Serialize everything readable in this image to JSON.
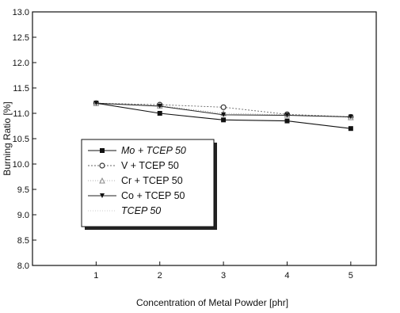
{
  "chart_data": {
    "type": "line",
    "title": "",
    "xlabel": "Concentration of Metal Powder [phr]",
    "ylabel": "Burning Ratio [%]",
    "xlim": [
      0,
      5.4
    ],
    "ylim": [
      8.0,
      13.0
    ],
    "xticks": [
      1,
      2,
      3,
      4,
      5
    ],
    "xtick_labels": [
      "1",
      "2",
      "3",
      "4",
      "5"
    ],
    "yticks": [
      8.0,
      8.5,
      9.0,
      9.5,
      10.0,
      10.5,
      11.0,
      11.5,
      12.0,
      12.5,
      13.0
    ],
    "ytick_labels": [
      "8.0",
      "8.5",
      "9.0",
      "9.5",
      "10.0",
      "10.5",
      "11.0",
      "11.5",
      "12.0",
      "12.5",
      "13.0"
    ],
    "grid": false,
    "legend_position": "left-middle",
    "series": [
      {
        "name": "Mo + TCEP 50",
        "marker": "square",
        "x": [
          1,
          2,
          3,
          4,
          5
        ],
        "y": [
          11.2,
          11.0,
          10.87,
          10.85,
          10.7
        ]
      },
      {
        "name": "V + TCEP 50",
        "marker": "circle",
        "x": [
          1,
          2,
          3,
          4,
          5
        ],
        "y": [
          11.2,
          11.17,
          11.12,
          10.98,
          10.93
        ]
      },
      {
        "name": "Cr + TCEP 50",
        "marker": "triangle-up",
        "x": [
          1,
          2,
          3,
          4,
          5
        ],
        "y": [
          11.2,
          11.15,
          11.0,
          10.97,
          10.92
        ]
      },
      {
        "name": "Co + TCEP 50",
        "marker": "triangle-down",
        "x": [
          1,
          2,
          3,
          4,
          5
        ],
        "y": [
          11.2,
          11.14,
          10.97,
          10.96,
          10.93
        ]
      },
      {
        "name": "TCEP 50",
        "marker": "none",
        "x": [],
        "y": []
      }
    ]
  }
}
